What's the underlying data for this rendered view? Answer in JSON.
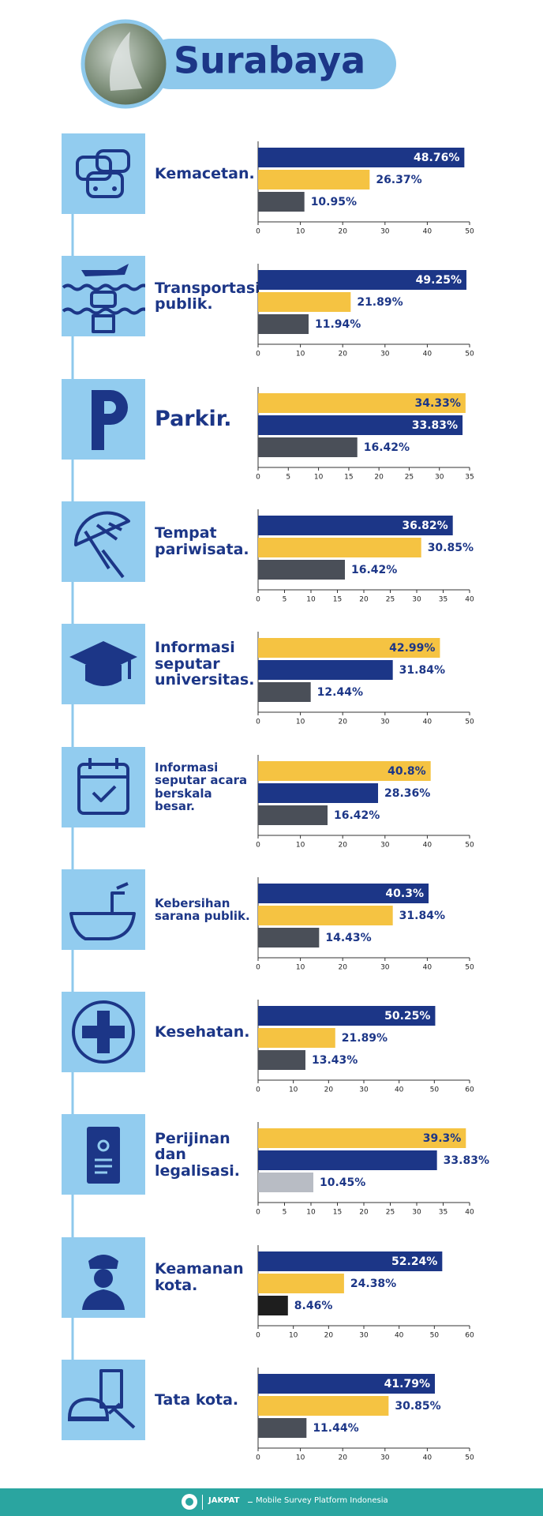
{
  "header": {
    "title": "Surabaya"
  },
  "chart_data": [
    {
      "type": "bar",
      "title": "Kemacetan.",
      "values": [
        48.76,
        26.37,
        10.95
      ],
      "value_labels": [
        "48.76%",
        "26.37%",
        "10.95%"
      ],
      "colors": [
        "#1c3687",
        "#f5c342",
        "#4a4f58"
      ],
      "xlim": [
        0,
        50
      ],
      "xticks": [
        0,
        10,
        20,
        30,
        40,
        50
      ]
    },
    {
      "type": "bar",
      "title": "Transportasi publik.",
      "values": [
        49.25,
        21.89,
        11.94
      ],
      "value_labels": [
        "49.25%",
        "21.89%",
        "11.94%"
      ],
      "colors": [
        "#1c3687",
        "#f5c342",
        "#4a4f58"
      ],
      "xlim": [
        0,
        50
      ],
      "xticks": [
        0,
        10,
        20,
        30,
        40,
        50
      ]
    },
    {
      "type": "bar",
      "title": "Parkir.",
      "values": [
        34.33,
        33.83,
        16.42
      ],
      "value_labels": [
        "34.33%",
        "33.83%",
        "16.42%"
      ],
      "colors": [
        "#f5c342",
        "#1c3687",
        "#4a4f58"
      ],
      "xlim": [
        0,
        35
      ],
      "xticks": [
        0,
        5,
        10,
        15,
        20,
        25,
        30,
        35
      ]
    },
    {
      "type": "bar",
      "title": "Tempat pariwisata.",
      "values": [
        36.82,
        30.85,
        16.42
      ],
      "value_labels": [
        "36.82%",
        "30.85%",
        "16.42%"
      ],
      "colors": [
        "#1c3687",
        "#f5c342",
        "#4a4f58"
      ],
      "xlim": [
        0,
        40
      ],
      "xticks": [
        0,
        5,
        10,
        15,
        20,
        25,
        30,
        35,
        40
      ]
    },
    {
      "type": "bar",
      "title": "Informasi seputar universitas.",
      "values": [
        42.99,
        31.84,
        12.44
      ],
      "value_labels": [
        "42.99%",
        "31.84%",
        "12.44%"
      ],
      "colors": [
        "#f5c342",
        "#1c3687",
        "#4a4f58"
      ],
      "xlim": [
        0,
        50
      ],
      "xticks": [
        0,
        10,
        20,
        30,
        40,
        50
      ]
    },
    {
      "type": "bar",
      "title": "Informasi seputar acara berskala besar.",
      "values": [
        40.8,
        28.36,
        16.42
      ],
      "value_labels": [
        "40.8%",
        "28.36%",
        "16.42%"
      ],
      "colors": [
        "#f5c342",
        "#1c3687",
        "#4a4f58"
      ],
      "xlim": [
        0,
        50
      ],
      "xticks": [
        0,
        10,
        20,
        30,
        40,
        50
      ]
    },
    {
      "type": "bar",
      "title": "Kebersihan sarana publik.",
      "values": [
        40.3,
        31.84,
        14.43
      ],
      "value_labels": [
        "40.3%",
        "31.84%",
        "14.43%"
      ],
      "colors": [
        "#1c3687",
        "#f5c342",
        "#4a4f58"
      ],
      "xlim": [
        0,
        50
      ],
      "xticks": [
        0,
        10,
        20,
        30,
        40,
        50
      ]
    },
    {
      "type": "bar",
      "title": "Kesehatan.",
      "values": [
        50.25,
        21.89,
        13.43
      ],
      "value_labels": [
        "50.25%",
        "21.89%",
        "13.43%"
      ],
      "colors": [
        "#1c3687",
        "#f5c342",
        "#4a4f58"
      ],
      "xlim": [
        0,
        60
      ],
      "xticks": [
        0,
        10,
        20,
        30,
        40,
        50,
        60
      ]
    },
    {
      "type": "bar",
      "title": "Perijinan dan legalisasi.",
      "values": [
        39.3,
        33.83,
        10.45
      ],
      "value_labels": [
        "39.3%",
        "33.83%",
        "10.45%"
      ],
      "colors": [
        "#f5c342",
        "#1c3687",
        "#b8bcc4"
      ],
      "xlim": [
        0,
        40
      ],
      "xticks": [
        0,
        5,
        10,
        15,
        20,
        25,
        30,
        35,
        40
      ]
    },
    {
      "type": "bar",
      "title": "Keamanan kota.",
      "values": [
        52.24,
        24.38,
        8.46
      ],
      "value_labels": [
        "52.24%",
        "24.38%",
        "8.46%"
      ],
      "colors": [
        "#1c3687",
        "#f5c342",
        "#1e1e1e"
      ],
      "xlim": [
        0,
        60
      ],
      "xticks": [
        0,
        10,
        20,
        30,
        40,
        50,
        60
      ]
    },
    {
      "type": "bar",
      "title": "Tata kota.",
      "values": [
        41.79,
        30.85,
        11.44
      ],
      "value_labels": [
        "41.79%",
        "30.85%",
        "11.44%"
      ],
      "colors": [
        "#1c3687",
        "#f5c342",
        "#4a4f58"
      ],
      "xlim": [
        0,
        50
      ],
      "xticks": [
        0,
        10,
        20,
        30,
        40,
        50
      ]
    }
  ],
  "footer": {
    "brand": "JAKPAT",
    "tagline": "Mobile Survey Platform Indonesia"
  }
}
